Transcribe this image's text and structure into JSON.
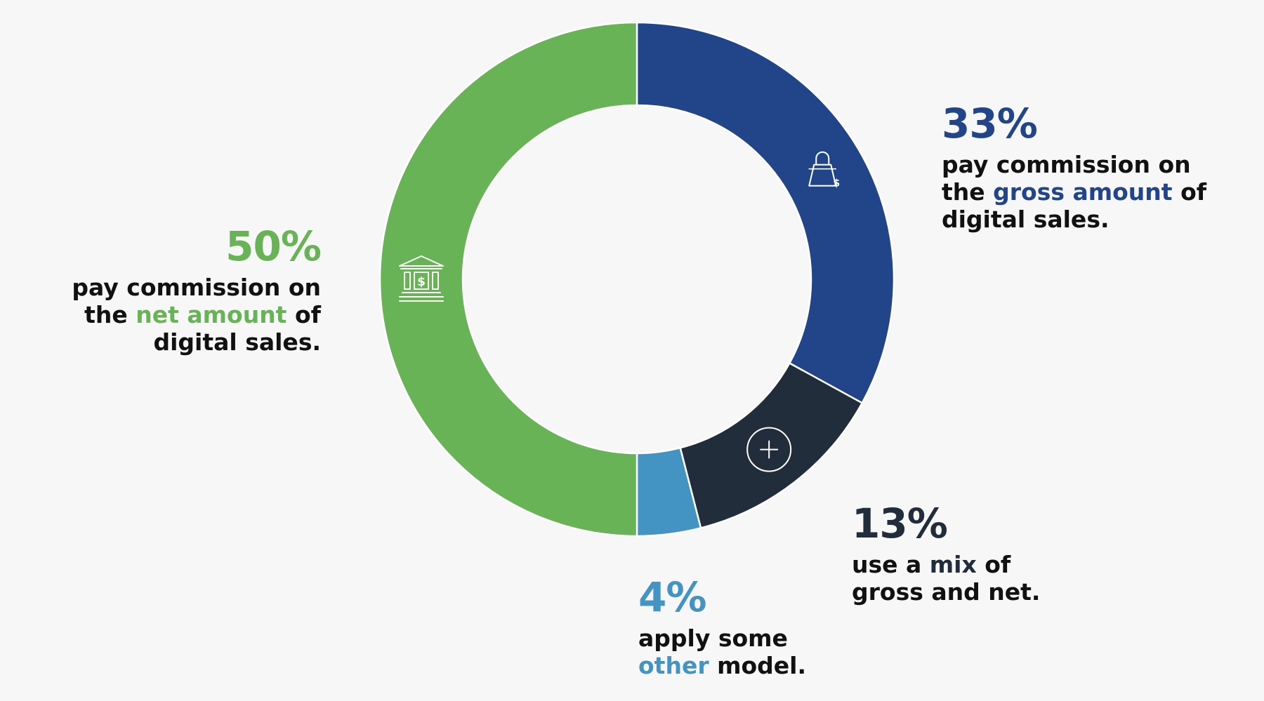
{
  "colors": {
    "net": "#68b356",
    "gross": "#214588",
    "mix": "#222d3c",
    "other": "#4494c3",
    "text": "#111111",
    "background": "#f7f7f7"
  },
  "chart_data": {
    "type": "pie",
    "donut": true,
    "start": "top, clockwise",
    "slices": [
      {
        "key": "gross",
        "value": 33,
        "label": "33%",
        "color": "#214588",
        "icon": "shopping-bag-dollar-icon"
      },
      {
        "key": "mix",
        "value": 13,
        "label": "13%",
        "color": "#222d3c",
        "icon": "plus-circle-icon"
      },
      {
        "key": "other",
        "value": 4,
        "label": "4%",
        "color": "#4494c3",
        "icon": ""
      },
      {
        "key": "net",
        "value": 50,
        "label": "50%",
        "color": "#68b356",
        "icon": "bank-dollar-icon"
      }
    ]
  },
  "callouts": {
    "gross": {
      "pct": "33%",
      "pre1": "pay commission on",
      "pre2": "the ",
      "hl": "gross amount",
      "post2": " of",
      "line3": "digital sales."
    },
    "net": {
      "pct": "50%",
      "pre1": "pay commission on",
      "pre2": "the ",
      "hl": "net amount",
      "post2": " of",
      "line3": "digital sales."
    },
    "mix": {
      "pct": "13%",
      "pre": "use a ",
      "hl": "mix",
      "post": " of",
      "line2": "gross and net."
    },
    "other": {
      "pct": "4%",
      "line1": "apply some",
      "hl": "other",
      "post": " model."
    }
  }
}
